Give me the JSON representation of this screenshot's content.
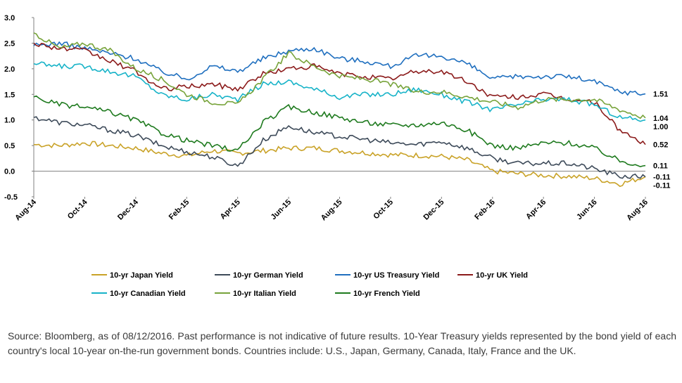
{
  "chart_data": {
    "type": "line",
    "title": "",
    "xlabel": "",
    "ylabel": "",
    "ylim": [
      -0.5,
      3.0
    ],
    "yticks": [
      "3.0",
      "2.5",
      "2.0",
      "1.5",
      "1.0",
      "0.5",
      "0.0",
      "-0.5"
    ],
    "x_tick_labels": [
      "Aug-14",
      "Oct-14",
      "Dec-14",
      "Feb-15",
      "Apr-15",
      "Jun-15",
      "Aug-15",
      "Oct-15",
      "Dec-15",
      "Feb-16",
      "Apr-16",
      "Jun-16",
      "Aug-16"
    ],
    "grid": false,
    "legend_position": "bottom",
    "x": [
      "Aug-14",
      "Sep-14",
      "Oct-14",
      "Nov-14",
      "Dec-14",
      "Jan-15",
      "Feb-15",
      "Mar-15",
      "Apr-15",
      "May-15",
      "Jun-15",
      "Jul-15",
      "Aug-15",
      "Sep-15",
      "Oct-15",
      "Nov-15",
      "Dec-15",
      "Jan-16",
      "Feb-16",
      "Mar-16",
      "Apr-16",
      "May-16",
      "Jun-16",
      "Jul-16",
      "Aug-16"
    ],
    "series": [
      {
        "name": "10-yr Japan Yield",
        "color": "#C9A227",
        "values": [
          0.52,
          0.5,
          0.55,
          0.5,
          0.45,
          0.35,
          0.3,
          0.4,
          0.35,
          0.4,
          0.45,
          0.45,
          0.4,
          0.36,
          0.32,
          0.31,
          0.29,
          0.22,
          0.0,
          -0.05,
          -0.08,
          -0.1,
          -0.14,
          -0.25,
          -0.11
        ],
        "end_label": "-0.11"
      },
      {
        "name": "10-yr German Yield",
        "color": "#3D4A59",
        "values": [
          1.05,
          0.95,
          0.9,
          0.8,
          0.7,
          0.5,
          0.38,
          0.28,
          0.1,
          0.6,
          0.88,
          0.75,
          0.68,
          0.62,
          0.55,
          0.52,
          0.58,
          0.45,
          0.25,
          0.15,
          0.15,
          0.15,
          0.05,
          -0.1,
          -0.11
        ],
        "end_label": "-0.11"
      },
      {
        "name": "10-yr US Treasury Yield",
        "color": "#1F6FBF",
        "values": [
          2.45,
          2.5,
          2.4,
          2.3,
          2.2,
          1.95,
          1.8,
          2.05,
          1.95,
          2.2,
          2.35,
          2.4,
          2.2,
          2.15,
          2.05,
          2.25,
          2.25,
          2.1,
          1.8,
          1.85,
          1.85,
          1.85,
          1.75,
          1.55,
          1.51
        ],
        "end_label": "1.51"
      },
      {
        "name": "10-yr UK Yield",
        "color": "#8B1A1A",
        "values": [
          2.5,
          2.4,
          2.35,
          2.15,
          1.95,
          1.6,
          1.65,
          1.7,
          1.6,
          1.9,
          2.0,
          2.05,
          1.9,
          1.85,
          1.8,
          1.95,
          1.95,
          1.75,
          1.45,
          1.45,
          1.5,
          1.4,
          1.35,
          0.8,
          0.52
        ],
        "end_label": "0.52"
      },
      {
        "name": "10-yr Canadian Yield",
        "color": "#17B3C8",
        "values": [
          2.1,
          2.05,
          2.05,
          1.95,
          1.85,
          1.5,
          1.4,
          1.5,
          1.4,
          1.7,
          1.75,
          1.6,
          1.45,
          1.5,
          1.5,
          1.6,
          1.5,
          1.35,
          1.2,
          1.3,
          1.4,
          1.4,
          1.3,
          1.05,
          1.0
        ],
        "end_label": "1.00"
      },
      {
        "name": "10-yr Italian Yield",
        "color": "#77A33A",
        "values": [
          2.7,
          2.4,
          2.5,
          2.35,
          2.0,
          1.8,
          1.5,
          1.35,
          1.3,
          1.8,
          2.3,
          2.05,
          1.85,
          1.8,
          1.7,
          1.55,
          1.55,
          1.45,
          1.35,
          1.25,
          1.4,
          1.4,
          1.4,
          1.2,
          1.04
        ],
        "end_label": "1.04"
      },
      {
        "name": "10-yr French Yield",
        "color": "#1E7A1E",
        "values": [
          1.45,
          1.3,
          1.25,
          1.15,
          1.0,
          0.75,
          0.6,
          0.5,
          0.4,
          0.95,
          1.25,
          1.15,
          1.05,
          0.95,
          0.9,
          0.9,
          0.95,
          0.8,
          0.5,
          0.45,
          0.55,
          0.55,
          0.45,
          0.2,
          0.11
        ],
        "end_label": "0.11"
      }
    ]
  },
  "source_note": "Source: Bloomberg, as of 08/12/2016. Past performance is not indicative of future results. 10-Year Treasury yields represented by the bond yield of each country's local 10-year on-the-run government bonds. Countries include: U.S., Japan, Germany, Canada, Italy, France and the UK."
}
